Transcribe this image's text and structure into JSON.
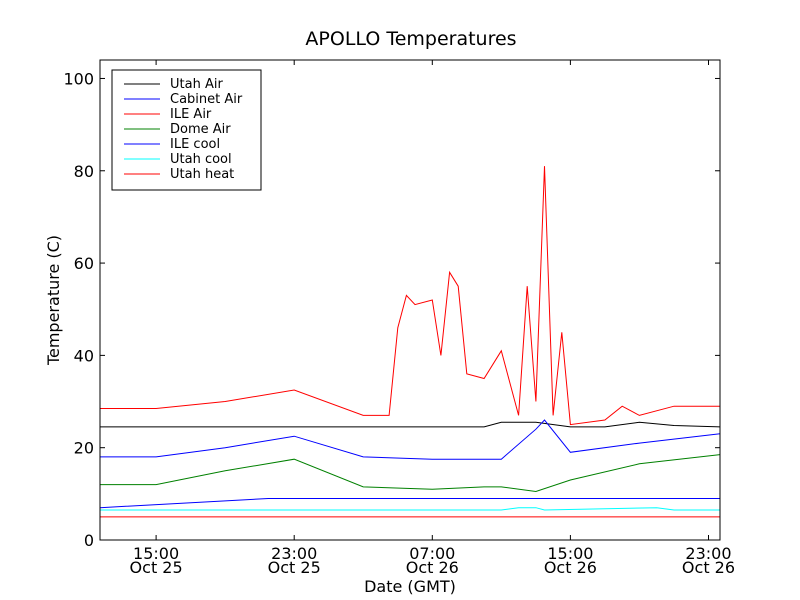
{
  "chart_data": {
    "type": "line",
    "title": "APOLLO Temperatures",
    "xlabel": "Date (GMT)",
    "ylabel": "Temperature (C)",
    "ylim": [
      0,
      104
    ],
    "yticks": [
      0,
      20,
      40,
      60,
      80,
      100
    ],
    "xlim": [
      "Oct 25 11:45",
      "Oct 26 23:40"
    ],
    "xticks": [
      {
        "t": "Oct 25 15:00",
        "time": "15:00",
        "date": "Oct 25"
      },
      {
        "t": "Oct 25 23:00",
        "time": "23:00",
        "date": "Oct 25"
      },
      {
        "t": "Oct 26 07:00",
        "time": "07:00",
        "date": "Oct 26"
      },
      {
        "t": "Oct 26 15:00",
        "time": "15:00",
        "date": "Oct 26"
      },
      {
        "t": "Oct 26 23:00",
        "time": "23:00",
        "date": "Oct 26"
      }
    ],
    "grid": false,
    "legend_position": "top-left",
    "series": [
      {
        "name": "Utah Air",
        "color": "#000000",
        "x": [
          "Oct 25 11:45",
          "Oct 25 15:00",
          "Oct 25 19:00",
          "Oct 25 23:00",
          "Oct 26 03:00",
          "Oct 26 07:00",
          "Oct 26 10:00",
          "Oct 26 11:00",
          "Oct 26 13:00",
          "Oct 26 15:00",
          "Oct 26 17:00",
          "Oct 26 19:00",
          "Oct 26 21:00",
          "Oct 26 23:40"
        ],
        "y": [
          24.5,
          24.5,
          24.5,
          24.5,
          24.5,
          24.5,
          24.5,
          25.5,
          25.5,
          24.5,
          24.5,
          25.5,
          24.8,
          24.5
        ]
      },
      {
        "name": "Cabinet Air",
        "color": "#0000ff",
        "x": [
          "Oct 25 11:45",
          "Oct 25 15:00",
          "Oct 25 19:00",
          "Oct 25 23:00",
          "Oct 26 03:00",
          "Oct 26 07:00",
          "Oct 26 10:00",
          "Oct 26 11:00",
          "Oct 26 13:00",
          "Oct 26 13:30",
          "Oct 26 15:00",
          "Oct 26 19:00",
          "Oct 26 23:40"
        ],
        "y": [
          18,
          18,
          20,
          22.5,
          18,
          17.5,
          17.5,
          17.5,
          24,
          26,
          19,
          21,
          23
        ]
      },
      {
        "name": "ILE Air",
        "color": "#ff0000",
        "x": [
          "Oct 25 11:45",
          "Oct 25 15:00",
          "Oct 25 19:00",
          "Oct 25 23:00",
          "Oct 26 03:00",
          "Oct 26 04:30",
          "Oct 26 05:00",
          "Oct 26 05:30",
          "Oct 26 06:00",
          "Oct 26 07:00",
          "Oct 26 07:30",
          "Oct 26 08:00",
          "Oct 26 08:30",
          "Oct 26 09:00",
          "Oct 26 10:00",
          "Oct 26 11:00",
          "Oct 26 12:00",
          "Oct 26 12:30",
          "Oct 26 13:00",
          "Oct 26 13:30",
          "Oct 26 14:00",
          "Oct 26 14:30",
          "Oct 26 15:00",
          "Oct 26 17:00",
          "Oct 26 18:00",
          "Oct 26 19:00",
          "Oct 26 21:00",
          "Oct 26 23:40"
        ],
        "y": [
          28.5,
          28.5,
          30,
          32.5,
          27,
          27,
          46,
          53,
          51,
          52,
          40,
          58,
          55,
          36,
          35,
          41,
          27,
          55,
          30,
          81,
          27,
          45,
          25,
          26,
          29,
          27,
          29,
          29
        ]
      },
      {
        "name": "Dome Air",
        "color": "#008000",
        "x": [
          "Oct 25 11:45",
          "Oct 25 15:00",
          "Oct 25 19:00",
          "Oct 25 23:00",
          "Oct 26 03:00",
          "Oct 26 07:00",
          "Oct 26 10:00",
          "Oct 26 11:00",
          "Oct 26 13:00",
          "Oct 26 15:00",
          "Oct 26 19:00",
          "Oct 26 23:40"
        ],
        "y": [
          12,
          12,
          15,
          17.5,
          11.5,
          11,
          11.5,
          11.5,
          10.5,
          13,
          16.5,
          18.5
        ]
      },
      {
        "name": "ILE cool",
        "color": "#0000ff",
        "x": [
          "Oct 25 11:45",
          "Oct 25 21:30",
          "Oct 26 23:40"
        ],
        "y": [
          7,
          9,
          9
        ]
      },
      {
        "name": "Utah cool",
        "color": "#00ffff",
        "x": [
          "Oct 25 11:45",
          "Oct 26 11:00",
          "Oct 26 12:00",
          "Oct 26 13:00",
          "Oct 26 13:30",
          "Oct 26 20:00",
          "Oct 26 21:00",
          "Oct 26 23:40"
        ],
        "y": [
          6.5,
          6.5,
          7,
          7,
          6.5,
          7,
          6.5,
          6.5
        ]
      },
      {
        "name": "Utah heat",
        "color": "#ff0000",
        "x": [
          "Oct 25 11:45",
          "Oct 25 15:00",
          "Oct 25 19:00",
          "Oct 25 23:00",
          "Oct 26 03:00",
          "Oct 26 07:00",
          "Oct 26 11:00",
          "Oct 26 15:00",
          "Oct 26 19:00",
          "Oct 26 23:40"
        ],
        "y": [
          5,
          5,
          5,
          5,
          5,
          5,
          5,
          5,
          5,
          5
        ]
      }
    ]
  }
}
